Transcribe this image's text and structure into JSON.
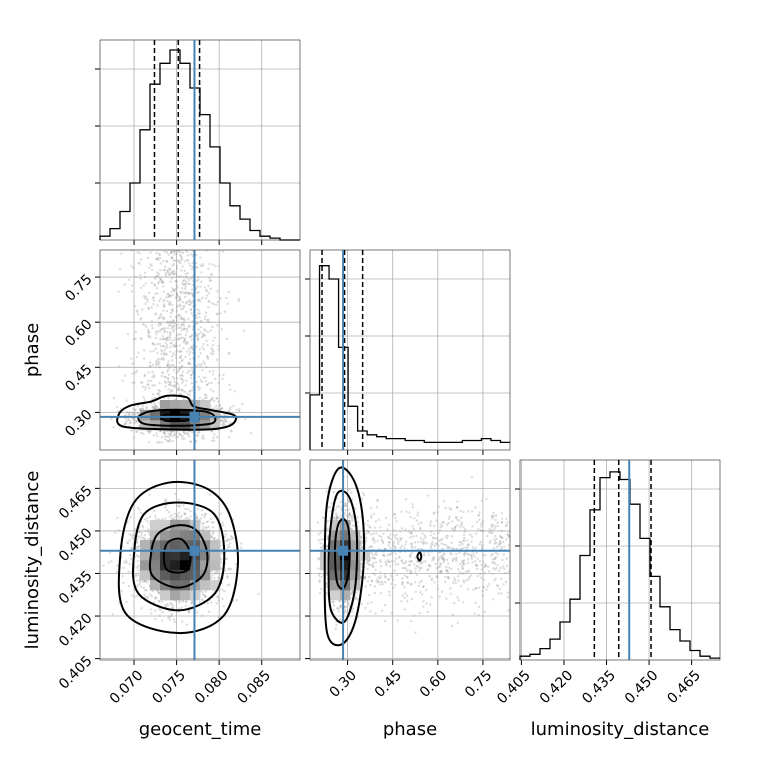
{
  "chart_data": {
    "type": "corner",
    "parameters": [
      "geocent_time",
      "phase",
      "luminosity_distance"
    ],
    "truth_color": "#4682b4",
    "truths": {
      "geocent_time": 0.0771,
      "phase": 0.285,
      "luminosity_distance": 0.443
    },
    "ranges": {
      "geocent_time": [
        0.066,
        0.0895
      ],
      "phase": [
        0.175,
        0.84
      ],
      "luminosity_distance": [
        0.4045,
        0.475
      ]
    },
    "ticks": {
      "geocent_time": [
        {
          "v": 0.07,
          "label": "0.070"
        },
        {
          "v": 0.075,
          "label": "0.075"
        },
        {
          "v": 0.08,
          "label": "0.080"
        },
        {
          "v": 0.085,
          "label": "0.085"
        }
      ],
      "phase": [
        {
          "v": 0.3,
          "label": "0.30"
        },
        {
          "v": 0.45,
          "label": "0.45"
        },
        {
          "v": 0.6,
          "label": "0.60"
        },
        {
          "v": 0.75,
          "label": "0.75"
        }
      ],
      "luminosity_distance": [
        {
          "v": 0.405,
          "label": "0.405"
        },
        {
          "v": 0.42,
          "label": "0.420"
        },
        {
          "v": 0.435,
          "label": "0.435"
        },
        {
          "v": 0.45,
          "label": "0.450"
        },
        {
          "v": 0.465,
          "label": "0.465"
        }
      ]
    },
    "histograms": {
      "geocent_time": {
        "quantiles": [
          0.0724,
          0.0752,
          0.0777
        ],
        "counts": [
          0.02,
          0.06,
          0.15,
          0.3,
          0.58,
          0.82,
          0.93,
          1.0,
          0.93,
          0.8,
          0.66,
          0.49,
          0.3,
          0.18,
          0.11,
          0.05,
          0.02,
          0.01,
          0.0,
          0.0
        ]
      },
      "phase": {
        "quantiles": [
          0.215,
          0.29,
          0.35
        ],
        "counts": [
          0.29,
          0.97,
          0.9,
          0.54,
          0.23,
          0.1,
          0.08,
          0.07,
          0.06,
          0.06,
          0.05,
          0.05,
          0.04,
          0.04,
          0.04,
          0.04,
          0.05,
          0.05,
          0.06,
          0.05,
          0.04
        ]
      },
      "luminosity_distance": {
        "quantiles": [
          0.4307,
          0.4393,
          0.4507
        ],
        "counts": [
          0.02,
          0.03,
          0.06,
          0.11,
          0.2,
          0.32,
          0.55,
          0.79,
          0.96,
          0.99,
          0.95,
          0.82,
          0.64,
          0.44,
          0.28,
          0.16,
          0.1,
          0.05,
          0.02,
          0.01
        ]
      }
    },
    "pairs": [
      {
        "x": "geocent_time",
        "y": "phase",
        "x_mean": 0.0752,
        "x_sd": 0.0025,
        "components": [
          {
            "w": 0.6,
            "y_mean": 0.285,
            "y_sd": 0.022
          },
          {
            "w": 0.4,
            "y_uniform": [
              0.2,
              0.84
            ]
          }
        ],
        "contours": [
          [
            [
              0.0712,
              0.262
            ],
            [
              0.0735,
              0.256
            ],
            [
              0.077,
              0.257
            ],
            [
              0.0792,
              0.264
            ],
            [
              0.0795,
              0.285
            ],
            [
              0.0785,
              0.302
            ],
            [
              0.0765,
              0.308
            ],
            [
              0.073,
              0.307
            ],
            [
              0.0712,
              0.298
            ],
            [
              0.0705,
              0.28
            ]
          ],
          [
            [
              0.0686,
              0.254
            ],
            [
              0.0735,
              0.244
            ],
            [
              0.079,
              0.244
            ],
            [
              0.0814,
              0.258
            ],
            [
              0.0818,
              0.29
            ],
            [
              0.079,
              0.308
            ],
            [
              0.077,
              0.32
            ],
            [
              0.0762,
              0.35
            ],
            [
              0.0738,
              0.355
            ],
            [
              0.072,
              0.336
            ],
            [
              0.0695,
              0.322
            ],
            [
              0.0682,
              0.293
            ]
          ],
          [
            [
              0.0738,
              0.272
            ],
            [
              0.0762,
              0.273
            ],
            [
              0.0768,
              0.285
            ],
            [
              0.076,
              0.292
            ],
            [
              0.0738,
              0.292
            ],
            [
              0.0732,
              0.284
            ]
          ]
        ]
      },
      {
        "x": "geocent_time",
        "y": "luminosity_distance",
        "x_mean": 0.0752,
        "x_sd": 0.0025,
        "components": [
          {
            "w": 1.0,
            "y_mean": 0.44,
            "y_sd": 0.0075
          }
        ],
        "contours": [
          [
            [
              0.0722,
              0.434
            ],
            [
              0.0752,
              0.43
            ],
            [
              0.078,
              0.434
            ],
            [
              0.0786,
              0.442
            ],
            [
              0.0774,
              0.45
            ],
            [
              0.0752,
              0.452
            ],
            [
              0.0728,
              0.449
            ],
            [
              0.072,
              0.442
            ]
          ],
          [
            [
              0.0705,
              0.428
            ],
            [
              0.0752,
              0.422
            ],
            [
              0.0795,
              0.428
            ],
            [
              0.0806,
              0.442
            ],
            [
              0.0794,
              0.456
            ],
            [
              0.0752,
              0.46
            ],
            [
              0.0712,
              0.456
            ],
            [
              0.07,
              0.442
            ]
          ],
          [
            [
              0.069,
              0.421
            ],
            [
              0.0752,
              0.414
            ],
            [
              0.0805,
              0.42
            ],
            [
              0.0822,
              0.438
            ],
            [
              0.0812,
              0.456
            ],
            [
              0.0785,
              0.465
            ],
            [
              0.074,
              0.467
            ],
            [
              0.07,
              0.46
            ],
            [
              0.0684,
              0.442
            ]
          ],
          [
            [
              0.074,
              0.436
            ],
            [
              0.0762,
              0.436
            ],
            [
              0.0766,
              0.442
            ],
            [
              0.0756,
              0.447
            ],
            [
              0.074,
              0.446
            ],
            [
              0.0735,
              0.441
            ]
          ]
        ]
      },
      {
        "x": "phase",
        "y": "luminosity_distance",
        "components": [
          {
            "w": 0.62,
            "x_mean": 0.285,
            "x_sd": 0.025,
            "y_mean": 0.44,
            "y_sd": 0.0075
          },
          {
            "w": 0.38,
            "x_uniform": [
              0.2,
              0.84
            ],
            "y_mean": 0.442,
            "y_sd": 0.0085
          }
        ],
        "contours": [
          [
            [
              0.265,
              0.432
            ],
            [
              0.288,
              0.43
            ],
            [
              0.305,
              0.437
            ],
            [
              0.305,
              0.449
            ],
            [
              0.29,
              0.454
            ],
            [
              0.268,
              0.452
            ],
            [
              0.258,
              0.443
            ]
          ],
          [
            [
              0.245,
              0.422
            ],
            [
              0.29,
              0.418
            ],
            [
              0.325,
              0.43
            ],
            [
              0.33,
              0.45
            ],
            [
              0.305,
              0.462
            ],
            [
              0.265,
              0.463
            ],
            [
              0.242,
              0.45
            ],
            [
              0.237,
              0.435
            ]
          ],
          [
            [
              0.232,
              0.414
            ],
            [
              0.28,
              0.41
            ],
            [
              0.325,
              0.418
            ],
            [
              0.352,
              0.436
            ],
            [
              0.35,
              0.455
            ],
            [
              0.32,
              0.468
            ],
            [
              0.27,
              0.472
            ],
            [
              0.232,
              0.46
            ],
            [
              0.224,
              0.437
            ]
          ],
          [
            [
              0.532,
              0.441
            ],
            [
              0.54,
              0.4425
            ],
            [
              0.545,
              0.441
            ],
            [
              0.54,
              0.4395
            ]
          ]
        ]
      }
    ],
    "xlabels": {
      "0": "geocent_time",
      "1": "phase",
      "2": "luminosity_distance"
    },
    "ylabels": {
      "1": "phase",
      "2": "luminosity_distance"
    }
  }
}
